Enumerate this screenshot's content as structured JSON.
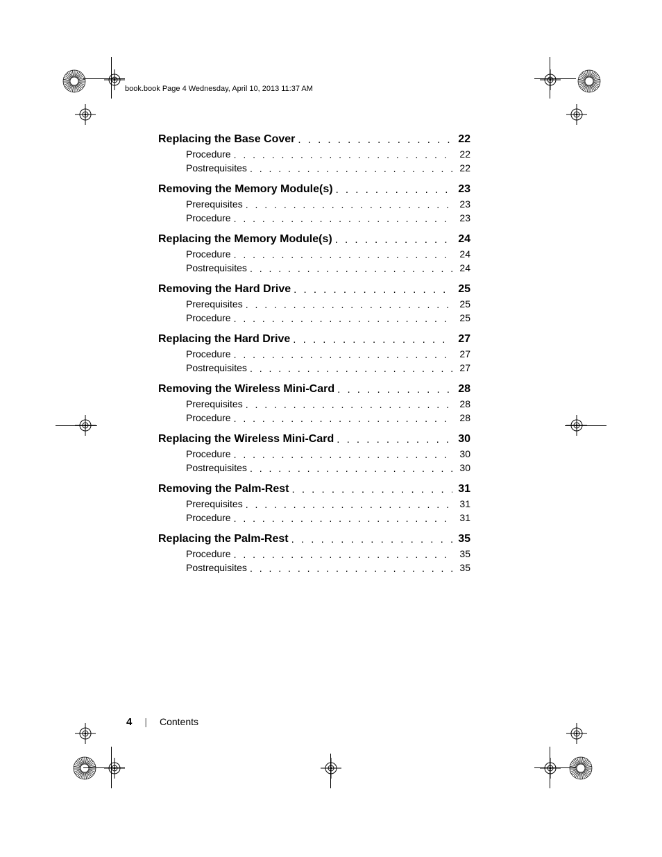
{
  "header": "book.book  Page 4  Wednesday, April 10, 2013  11:37 AM",
  "sections": [
    {
      "title": "Replacing the Base Cover",
      "page": "22",
      "subs": [
        {
          "label": "Procedure",
          "page": "22"
        },
        {
          "label": "Postrequisites",
          "page": "22"
        }
      ]
    },
    {
      "title": "Removing the Memory Module(s)",
      "page": "23",
      "subs": [
        {
          "label": "Prerequisites",
          "page": "23"
        },
        {
          "label": "Procedure",
          "page": "23"
        }
      ]
    },
    {
      "title": "Replacing the Memory Module(s)",
      "page": "24",
      "subs": [
        {
          "label": "Procedure",
          "page": "24"
        },
        {
          "label": "Postrequisites",
          "page": "24"
        }
      ]
    },
    {
      "title": "Removing the Hard Drive",
      "page": "25",
      "subs": [
        {
          "label": "Prerequisites",
          "page": "25"
        },
        {
          "label": "Procedure",
          "page": "25"
        }
      ]
    },
    {
      "title": "Replacing the Hard Drive",
      "page": "27",
      "subs": [
        {
          "label": "Procedure",
          "page": "27"
        },
        {
          "label": "Postrequisites",
          "page": "27"
        }
      ]
    },
    {
      "title": "Removing the Wireless Mini-Card",
      "page": "28",
      "subs": [
        {
          "label": "Prerequisites",
          "page": "28"
        },
        {
          "label": "Procedure",
          "page": "28"
        }
      ]
    },
    {
      "title": "Replacing the Wireless Mini-Card",
      "page": "30",
      "subs": [
        {
          "label": "Procedure",
          "page": "30"
        },
        {
          "label": "Postrequisites",
          "page": "30"
        }
      ]
    },
    {
      "title": "Removing the Palm-Rest",
      "page": "31",
      "subs": [
        {
          "label": "Prerequisites",
          "page": "31"
        },
        {
          "label": "Procedure",
          "page": "31"
        }
      ]
    },
    {
      "title": "Replacing the Palm-Rest",
      "page": "35",
      "subs": [
        {
          "label": "Procedure",
          "page": "35"
        },
        {
          "label": "Postrequisites",
          "page": "35"
        }
      ]
    }
  ],
  "footer": {
    "page": "4",
    "separator": "|",
    "label": "Contents"
  },
  "dots": ". . . . . . . . . . . . . . . . . . . . . . . . . . . . . . . . . . . . . . . . . . . . . . . . . ."
}
